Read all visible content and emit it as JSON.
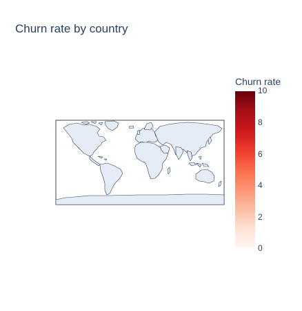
{
  "title": "Churn rate by country",
  "colorbar": {
    "title": "Churn rate",
    "colorscale": "Reds",
    "range": [
      0,
      10
    ],
    "ticks": [
      "10",
      "8",
      "6",
      "4",
      "2",
      "0"
    ]
  },
  "map": {
    "projection": "equirectangular",
    "land_color": "#e5ecf6",
    "coastline_color": "#2a3f5f",
    "frame_color": "#444444"
  },
  "chart_data": {
    "type": "choropleth",
    "title": "Churn rate by country",
    "colorbar_title": "Churn rate",
    "zrange": [
      0,
      10
    ],
    "colorbar_ticks": [
      0,
      2,
      4,
      6,
      8,
      10
    ],
    "colorscale": "Reds",
    "locations": [],
    "values": []
  }
}
